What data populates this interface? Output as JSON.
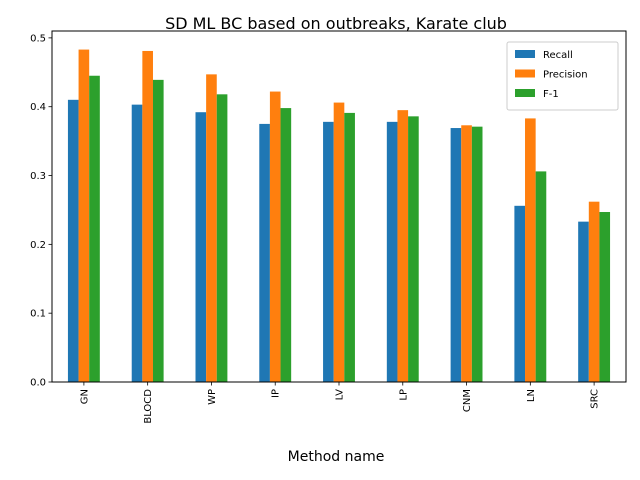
{
  "chart_data": {
    "type": "bar",
    "title": "SD ML BC based on outbreaks, Karate club",
    "xlabel": "Method name",
    "ylabel": "",
    "ylim": [
      0,
      0.51
    ],
    "yticks": [
      "0.0",
      "0.1",
      "0.2",
      "0.3",
      "0.4",
      "0.5"
    ],
    "legend_position": "top-right",
    "grid": false,
    "categories": [
      "GN",
      "BLOCD",
      "WP",
      "IP",
      "LV",
      "LP",
      "CNM",
      "LN",
      "SRC"
    ],
    "series": [
      {
        "name": "Recall",
        "color": "#1f77b4",
        "values": [
          0.41,
          0.403,
          0.392,
          0.375,
          0.378,
          0.378,
          0.369,
          0.256,
          0.233
        ]
      },
      {
        "name": "Precision",
        "color": "#ff7f0e",
        "values": [
          0.483,
          0.481,
          0.447,
          0.422,
          0.406,
          0.395,
          0.373,
          0.383,
          0.262
        ]
      },
      {
        "name": "F-1",
        "color": "#2ca02c",
        "values": [
          0.445,
          0.439,
          0.418,
          0.398,
          0.391,
          0.386,
          0.371,
          0.306,
          0.247
        ]
      }
    ]
  }
}
